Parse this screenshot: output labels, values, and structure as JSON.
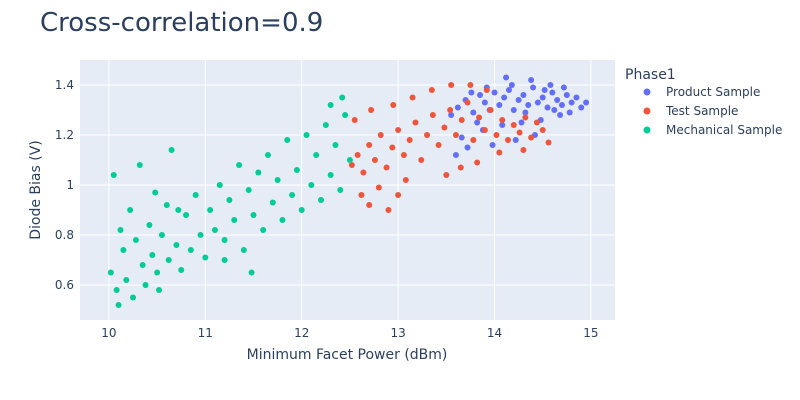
{
  "chart_data": {
    "type": "scatter",
    "title": "Cross-correlation=0.9",
    "xlabel": "Minimum Facet Power (dBm)",
    "ylabel": "Diode Bias (V)",
    "xlim": [
      9.7,
      15.25
    ],
    "ylim": [
      0.46,
      1.5
    ],
    "x_ticks": [
      10,
      11,
      12,
      13,
      14,
      15
    ],
    "y_ticks": [
      0.6,
      0.8,
      1.0,
      1.2,
      1.4
    ],
    "x_tick_labels": [
      "10",
      "11",
      "12",
      "13",
      "14",
      "15"
    ],
    "y_tick_labels": [
      "0.6",
      "0.8",
      "1",
      "1.2",
      "1.4"
    ],
    "grid": true,
    "legend": {
      "title": "Phase1",
      "placement": "right"
    },
    "series": [
      {
        "name": "Product Sample",
        "color": "#636efa",
        "points": [
          [
            13.55,
            1.28
          ],
          [
            13.62,
            1.31
          ],
          [
            13.7,
            1.34
          ],
          [
            13.78,
            1.29
          ],
          [
            13.85,
            1.36
          ],
          [
            13.9,
            1.33
          ],
          [
            13.95,
            1.3
          ],
          [
            14.0,
            1.37
          ],
          [
            14.05,
            1.32
          ],
          [
            14.1,
            1.35
          ],
          [
            14.15,
            1.38
          ],
          [
            14.2,
            1.3
          ],
          [
            14.25,
            1.34
          ],
          [
            14.3,
            1.36
          ],
          [
            14.35,
            1.32
          ],
          [
            14.4,
            1.39
          ],
          [
            14.45,
            1.33
          ],
          [
            14.5,
            1.35
          ],
          [
            14.55,
            1.31
          ],
          [
            14.6,
            1.37
          ],
          [
            14.65,
            1.34
          ],
          [
            14.7,
            1.32
          ],
          [
            14.75,
            1.36
          ],
          [
            14.8,
            1.33
          ],
          [
            14.85,
            1.35
          ],
          [
            14.9,
            1.31
          ],
          [
            14.95,
            1.33
          ],
          [
            14.12,
            1.43
          ],
          [
            14.38,
            1.42
          ],
          [
            14.22,
            1.18
          ],
          [
            13.98,
            1.16
          ],
          [
            14.42,
            1.2
          ],
          [
            13.6,
            1.12
          ],
          [
            13.72,
            1.15
          ],
          [
            14.58,
            1.4
          ],
          [
            14.68,
            1.28
          ],
          [
            14.48,
            1.26
          ],
          [
            14.28,
            1.25
          ],
          [
            14.08,
            1.24
          ],
          [
            13.88,
            1.22
          ],
          [
            13.66,
            1.19
          ],
          [
            13.82,
            1.25
          ],
          [
            14.32,
            1.29
          ],
          [
            14.62,
            1.3
          ],
          [
            14.78,
            1.29
          ],
          [
            14.52,
            1.38
          ],
          [
            14.72,
            1.39
          ],
          [
            14.18,
            1.4
          ],
          [
            13.76,
            1.37
          ],
          [
            13.92,
            1.39
          ]
        ]
      },
      {
        "name": "Test Sample",
        "color": "#ef553b",
        "points": [
          [
            12.52,
            1.08
          ],
          [
            12.58,
            1.12
          ],
          [
            12.64,
            1.05
          ],
          [
            12.7,
            1.16
          ],
          [
            12.76,
            1.1
          ],
          [
            12.82,
            1.2
          ],
          [
            12.88,
            1.07
          ],
          [
            12.94,
            1.15
          ],
          [
            13.0,
            1.22
          ],
          [
            13.06,
            1.12
          ],
          [
            13.12,
            1.18
          ],
          [
            13.18,
            1.25
          ],
          [
            13.24,
            1.1
          ],
          [
            13.3,
            1.2
          ],
          [
            13.36,
            1.28
          ],
          [
            13.42,
            1.16
          ],
          [
            13.48,
            1.23
          ],
          [
            13.54,
            1.3
          ],
          [
            13.6,
            1.2
          ],
          [
            13.66,
            1.26
          ],
          [
            13.72,
            1.33
          ],
          [
            13.78,
            1.18
          ],
          [
            13.84,
            1.27
          ],
          [
            13.9,
            1.22
          ],
          [
            13.96,
            1.3
          ],
          [
            14.02,
            1.2
          ],
          [
            14.08,
            1.26
          ],
          [
            14.14,
            1.18
          ],
          [
            14.2,
            1.24
          ],
          [
            14.26,
            1.21
          ],
          [
            14.32,
            1.27
          ],
          [
            14.38,
            1.19
          ],
          [
            14.44,
            1.25
          ],
          [
            14.5,
            1.22
          ],
          [
            14.56,
            1.17
          ],
          [
            12.62,
            0.96
          ],
          [
            12.7,
            0.92
          ],
          [
            12.8,
            0.99
          ],
          [
            12.9,
            0.9
          ],
          [
            13.0,
            0.96
          ],
          [
            13.08,
            1.02
          ],
          [
            12.55,
            1.26
          ],
          [
            12.72,
            1.3
          ],
          [
            12.95,
            1.32
          ],
          [
            13.15,
            1.35
          ],
          [
            13.35,
            1.38
          ],
          [
            13.55,
            1.4
          ],
          [
            13.75,
            1.4
          ],
          [
            13.92,
            1.38
          ],
          [
            13.82,
            1.09
          ],
          [
            14.05,
            1.13
          ],
          [
            14.3,
            1.14
          ],
          [
            13.65,
            1.07
          ],
          [
            13.5,
            1.04
          ]
        ]
      },
      {
        "name": "Mechanical Sample",
        "color": "#00cc96",
        "points": [
          [
            10.02,
            0.65
          ],
          [
            10.05,
            1.04
          ],
          [
            10.08,
            0.58
          ],
          [
            10.12,
            0.82
          ],
          [
            10.15,
            0.74
          ],
          [
            10.18,
            0.62
          ],
          [
            10.22,
            0.9
          ],
          [
            10.25,
            0.55
          ],
          [
            10.28,
            0.78
          ],
          [
            10.32,
            1.08
          ],
          [
            10.35,
            0.68
          ],
          [
            10.38,
            0.6
          ],
          [
            10.42,
            0.84
          ],
          [
            10.45,
            0.72
          ],
          [
            10.5,
            0.65
          ],
          [
            10.55,
            0.8
          ],
          [
            10.6,
            0.92
          ],
          [
            10.62,
            0.7
          ],
          [
            10.65,
            1.14
          ],
          [
            10.7,
            0.76
          ],
          [
            10.75,
            0.66
          ],
          [
            10.8,
            0.88
          ],
          [
            10.85,
            0.74
          ],
          [
            10.9,
            0.96
          ],
          [
            10.95,
            0.8
          ],
          [
            11.0,
            0.71
          ],
          [
            11.05,
            0.9
          ],
          [
            11.1,
            0.82
          ],
          [
            11.15,
            1.0
          ],
          [
            11.2,
            0.78
          ],
          [
            11.25,
            0.94
          ],
          [
            11.3,
            0.86
          ],
          [
            11.35,
            1.08
          ],
          [
            11.4,
            0.74
          ],
          [
            11.45,
            0.98
          ],
          [
            11.5,
            0.88
          ],
          [
            11.55,
            1.05
          ],
          [
            11.6,
            0.82
          ],
          [
            11.65,
            1.12
          ],
          [
            11.7,
            0.93
          ],
          [
            11.75,
            1.02
          ],
          [
            11.8,
            0.86
          ],
          [
            11.85,
            1.18
          ],
          [
            11.9,
            0.96
          ],
          [
            11.95,
            1.06
          ],
          [
            12.0,
            0.9
          ],
          [
            12.05,
            1.2
          ],
          [
            12.1,
            1.0
          ],
          [
            12.15,
            1.12
          ],
          [
            12.2,
            0.94
          ],
          [
            12.25,
            1.24
          ],
          [
            12.3,
            1.04
          ],
          [
            12.35,
            1.16
          ],
          [
            12.4,
            0.98
          ],
          [
            12.45,
            1.28
          ],
          [
            12.5,
            1.1
          ],
          [
            10.52,
            0.58
          ],
          [
            10.1,
            0.52
          ],
          [
            11.48,
            0.65
          ],
          [
            11.2,
            0.7
          ],
          [
            12.3,
            1.32
          ],
          [
            12.42,
            1.35
          ],
          [
            10.48,
            0.97
          ],
          [
            10.72,
            0.9
          ]
        ]
      }
    ]
  }
}
